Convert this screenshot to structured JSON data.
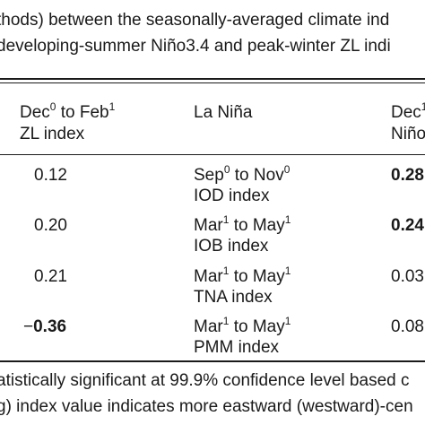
{
  "caption": {
    "line1": "thods) between the seasonally-averaged climate ind",
    "line2": "developing-summer Niño3.4 and peak-winter ZL indi"
  },
  "header": {
    "col1_line1_a": "Dec",
    "col1_line1_sup1": "0",
    "col1_line1_b": " to Feb",
    "col1_line1_sup2": "1",
    "col1_line2": "ZL index",
    "col2": "La Niña",
    "col3_line1": "Dec",
    "col3_line1_sup": "1",
    "col3_line2": "Niño"
  },
  "rows": [
    {
      "value": "0.12",
      "season_a": "Sep",
      "season_sup1": "0",
      "season_b": " to Nov",
      "season_sup2": "0",
      "index": "IOD index",
      "right": "0.28"
    },
    {
      "value": "0.20",
      "season_a": "Mar",
      "season_sup1": "1",
      "season_b": " to May",
      "season_sup2": "1",
      "index": "IOB index",
      "right": "0.24"
    },
    {
      "value": "0.21",
      "season_a": "Mar",
      "season_sup1": "1",
      "season_b": " to May",
      "season_sup2": "1",
      "index": "TNA index",
      "right": "0.03"
    },
    {
      "value_prefix": "−",
      "value": "0.36",
      "season_a": "Mar",
      "season_sup1": "1",
      "season_b": " to May",
      "season_sup2": "1",
      "index": "PMM index",
      "right": "0.08"
    }
  ],
  "footnote": {
    "line1": "atistically significant at 99.9% confidence level based c",
    "line2": "g) index value indicates more eastward (westward)-cen"
  }
}
